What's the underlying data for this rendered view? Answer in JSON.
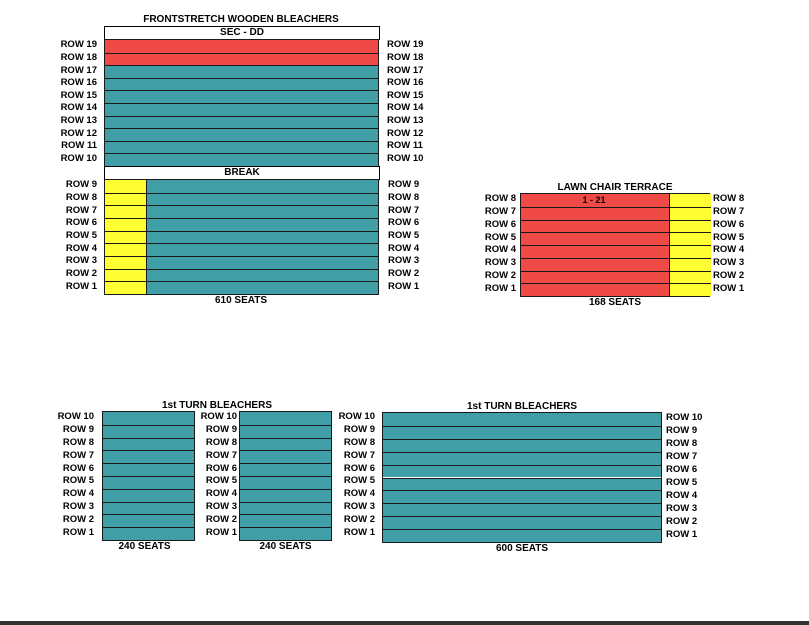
{
  "colors": {
    "teal": "#3f9ea6",
    "red": "#ef4a45",
    "yellow": "#ffff33"
  },
  "frontstretch": {
    "title": "FRONTSTRETCH WOODEN BLEACHERS",
    "section": "SEC - DD",
    "break_label": "BREAK",
    "seats": "610 SEATS",
    "upper_rows": [
      {
        "label": "ROW 19",
        "color": "red"
      },
      {
        "label": "ROW 18",
        "color": "red"
      },
      {
        "label": "ROW 17",
        "color": "teal"
      },
      {
        "label": "ROW 16",
        "color": "teal"
      },
      {
        "label": "ROW 15",
        "color": "teal"
      },
      {
        "label": "ROW 14",
        "color": "teal"
      },
      {
        "label": "ROW 13",
        "color": "teal"
      },
      {
        "label": "ROW 12",
        "color": "teal"
      },
      {
        "label": "ROW 11",
        "color": "teal"
      },
      {
        "label": "ROW 10",
        "color": "teal"
      }
    ],
    "lower_rows": [
      "ROW 9",
      "ROW 8",
      "ROW 7",
      "ROW 6",
      "ROW 5",
      "ROW 4",
      "ROW 3",
      "ROW 2",
      "ROW 1"
    ],
    "lower_aisle_color": "yellow"
  },
  "lawn_terrace": {
    "title": "LAWN CHAIR TERRACE",
    "seat_range": "1 - 21",
    "seats": "168 SEATS",
    "rows": [
      "ROW 8",
      "ROW 7",
      "ROW 6",
      "ROW 5",
      "ROW 4",
      "ROW 3",
      "ROW 2",
      "ROW 1"
    ],
    "main_color": "red",
    "aisle_color": "yellow"
  },
  "turn_bleachers_left": {
    "title": "1st TURN BLEACHERS",
    "rows": [
      "ROW 10",
      "ROW 9",
      "ROW 8",
      "ROW 7",
      "ROW 6",
      "ROW 5",
      "ROW 4",
      "ROW 3",
      "ROW 2",
      "ROW 1"
    ],
    "block1_seats": "240 SEATS",
    "block2_seats": "240 SEATS"
  },
  "turn_bleachers_right": {
    "title": "1st TURN BLEACHERS",
    "rows": [
      "ROW 10",
      "ROW 9",
      "ROW 8",
      "ROW 7",
      "ROW 6",
      "ROW 5",
      "ROW 4",
      "ROW 3",
      "ROW 2",
      "ROW 1"
    ],
    "seats": "600 SEATS"
  }
}
